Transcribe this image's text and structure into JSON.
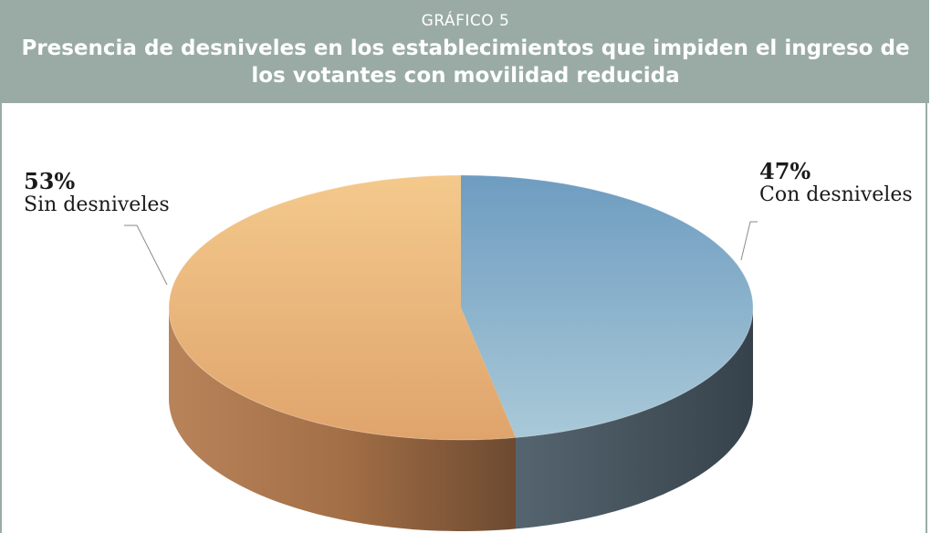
{
  "header": {
    "kicker": "GRÁFICO 5",
    "title": "Presencia de desniveles en los establecimientos que impiden el ingreso de los votantes con movilidad reducida"
  },
  "colors": {
    "header_bg": "#9aaba5",
    "with_steps_top_light": "#a6c6d8",
    "with_steps_top_dark": "#6e9cc0",
    "with_steps_side": "#3f4c56",
    "without_steps_top_light": "#f4c98c",
    "without_steps_top_dark": "#dda06a",
    "without_steps_side": "#7d5638"
  },
  "chart_data": {
    "type": "pie",
    "style": "3d",
    "title": "Presencia de desniveles en los establecimientos que impiden el ingreso de los votantes con movilidad reducida",
    "slices": [
      {
        "label": "Con desniveles",
        "value": 47,
        "value_label": "47%"
      },
      {
        "label": "Sin desniveles",
        "value": 53,
        "value_label": "53%"
      }
    ],
    "legend": "none"
  }
}
